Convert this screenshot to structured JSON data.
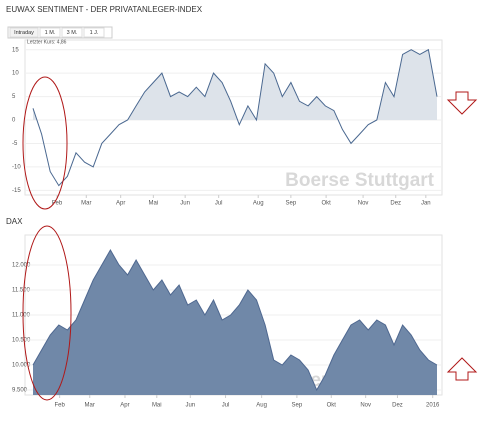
{
  "chart_data": [
    {
      "type": "area",
      "title": "EUWAX SENTIMENT - DER PRIVATANLEGER-INDEX",
      "tabs": [
        "Intraday",
        "1 M.",
        "3 M.",
        "1 J."
      ],
      "annotation": "Letzter Kurs: 4,86",
      "watermark": "Boerse Stuttgart",
      "color": "#4a6890",
      "fill": "#dde3ea",
      "fill_above_zero": true,
      "grid": true,
      "values": [
        2.5,
        -3,
        -11,
        -14,
        -12,
        -7,
        -9,
        -10,
        -5,
        -3,
        -1,
        0,
        3,
        6,
        8,
        10,
        5,
        6,
        5,
        7,
        5,
        10,
        8,
        4,
        -1,
        3,
        0,
        12,
        10,
        5,
        8,
        4,
        3,
        5,
        3,
        2,
        -2,
        -5,
        -3,
        -1,
        0,
        8,
        5,
        14,
        15,
        14,
        15,
        5
      ],
      "xlim": [
        0,
        47
      ],
      "xticks": [
        {
          "value": 2.8,
          "label": "Feb"
        },
        {
          "value": 6.2,
          "label": "Mar"
        },
        {
          "value": 10.2,
          "label": "Apr"
        },
        {
          "value": 14,
          "label": "Mai"
        },
        {
          "value": 17.7,
          "label": "Jun"
        },
        {
          "value": 21.6,
          "label": "Jul"
        },
        {
          "value": 26.2,
          "label": "Aug"
        },
        {
          "value": 30,
          "label": "Sep"
        },
        {
          "value": 34.1,
          "label": "Okt"
        },
        {
          "value": 38.4,
          "label": "Nov"
        },
        {
          "value": 42.2,
          "label": "Dez"
        },
        {
          "value": 45.7,
          "label": "Jan"
        }
      ],
      "ylim": [
        -16,
        16
      ],
      "yticks": [
        15,
        10,
        5,
        0,
        -5,
        -10,
        -15
      ]
    },
    {
      "type": "area",
      "title": "DAX",
      "watermark": "Boerse Stuttgart",
      "color": "#4f6890",
      "fill": "#7088a8",
      "fill_above_zero": false,
      "grid": true,
      "values": [
        10000,
        10300,
        10600,
        10800,
        10700,
        10900,
        11300,
        11700,
        12000,
        12300,
        12000,
        11800,
        12100,
        11800,
        11500,
        11700,
        11400,
        11600,
        11200,
        11300,
        11000,
        11300,
        10900,
        11000,
        11200,
        11500,
        11300,
        10800,
        10100,
        10000,
        10200,
        10100,
        9900,
        9500,
        9800,
        10200,
        10500,
        10800,
        10900,
        10700,
        10900,
        10800,
        10400,
        10800,
        10600,
        10300,
        10100,
        10000
      ],
      "xlim": [
        0,
        47
      ],
      "xticks": [
        {
          "value": 3.1,
          "label": "Feb"
        },
        {
          "value": 6.6,
          "label": "Mar"
        },
        {
          "value": 10.7,
          "label": "Apr"
        },
        {
          "value": 14.4,
          "label": "Mai"
        },
        {
          "value": 18.3,
          "label": "Jun"
        },
        {
          "value": 22.4,
          "label": "Jul"
        },
        {
          "value": 26.6,
          "label": "Aug"
        },
        {
          "value": 30.7,
          "label": "Sep"
        },
        {
          "value": 34.7,
          "label": "Okt"
        },
        {
          "value": 38.7,
          "label": "Nov"
        },
        {
          "value": 42.4,
          "label": "Dez"
        },
        {
          "value": 46.5,
          "label": "2016"
        }
      ],
      "ylim": [
        9400,
        12500
      ],
      "yticks": [
        {
          "value": 12000,
          "label": "12.000"
        },
        {
          "value": 11500,
          "label": "11.500"
        },
        {
          "value": 11000,
          "label": "11.000"
        },
        {
          "value": 10500,
          "label": "10.500"
        },
        {
          "value": 10000,
          "label": "10.000"
        },
        {
          "value": 9500,
          "label": "9.500"
        }
      ]
    }
  ]
}
